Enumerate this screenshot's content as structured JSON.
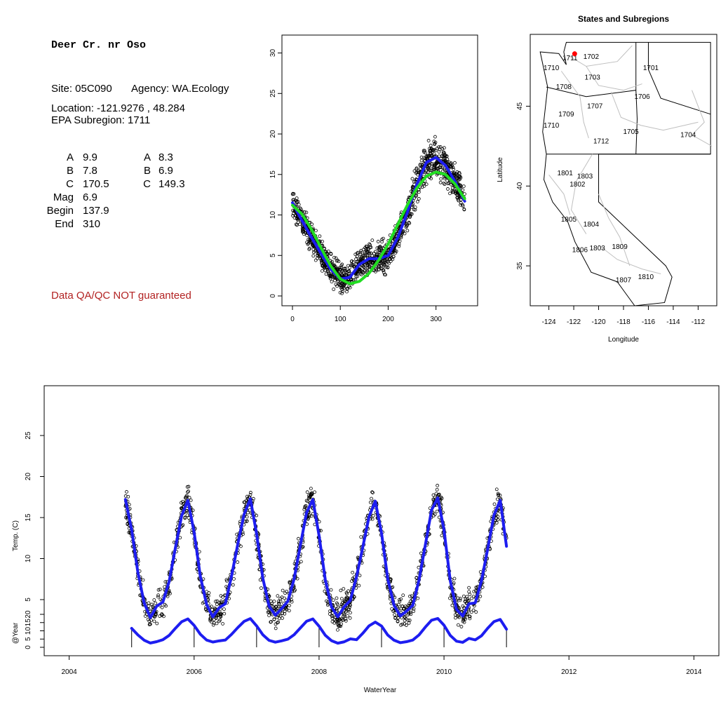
{
  "info": {
    "site_title": "Deer Cr. nr Oso",
    "site_line": "Site: 05C090",
    "agency_line": "Agency: WA.Ecology",
    "location_line": "Location: -121.9276 , 48.284",
    "subregion_line": "EPA Subregion: 1711",
    "params_left": [
      {
        "key": "A",
        "value": "9.9"
      },
      {
        "key": "B",
        "value": "7.8"
      },
      {
        "key": "C",
        "value": "170.5"
      },
      {
        "key": "Mag",
        "value": "6.9"
      },
      {
        "key": "Begin",
        "value": "137.9"
      },
      {
        "key": "End",
        "value": "310"
      }
    ],
    "params_right": [
      {
        "key": "A",
        "value": "8.3"
      },
      {
        "key": "B",
        "value": "6.9"
      },
      {
        "key": "C",
        "value": "149.3"
      }
    ],
    "qa_note": "Data QA/QC NOT guaranteed",
    "qa_color": "#b22222"
  },
  "chart_data": [
    {
      "type": "scatter",
      "xlim": [
        0,
        365
      ],
      "ylim": [
        0,
        31
      ],
      "xticks": [
        0,
        100,
        200,
        300
      ],
      "yticks": [
        0,
        5,
        10,
        15,
        20,
        25,
        30
      ],
      "point_color": "#000000",
      "fits": [
        {
          "color": "#1d1df0",
          "x": [
            0,
            20,
            40,
            60,
            80,
            100,
            120,
            140,
            160,
            180,
            200,
            220,
            240,
            260,
            280,
            300,
            320,
            340,
            360
          ],
          "y": [
            11.5,
            9.3,
            7.2,
            5.2,
            3.3,
            2.1,
            2.3,
            3.9,
            4.6,
            4.6,
            5.0,
            7.2,
            10.3,
            13.8,
            16.5,
            17.1,
            16.1,
            14.1,
            11.7
          ]
        },
        {
          "color": "#22dd22",
          "x": [
            0,
            20,
            40,
            60,
            80,
            100,
            120,
            140,
            160,
            180,
            200,
            220,
            240,
            260,
            280,
            300,
            320,
            340,
            360
          ],
          "y": [
            11.2,
            10.1,
            8.2,
            5.9,
            3.7,
            2.1,
            1.5,
            1.8,
            2.8,
            4.4,
            6.4,
            8.8,
            11.2,
            13.3,
            14.8,
            15.3,
            15.0,
            13.8,
            12.0
          ]
        }
      ]
    },
    {
      "type": "scatter",
      "title": "States and Subregions",
      "xlabel": "Longitude",
      "ylabel": "Latitude",
      "xlim": [
        -125.5,
        -110.5
      ],
      "ylim": [
        32.5,
        49.5
      ],
      "xticks": [
        -124,
        -122,
        -120,
        -118,
        -116,
        -114,
        -112
      ],
      "yticks": [
        35,
        40,
        45
      ],
      "site_marker": {
        "lon": -121.9276,
        "lat": 48.284,
        "color": "#ff0000"
      },
      "region_labels": [
        {
          "label": "1711",
          "lon": -122.3,
          "lat": 48.0
        },
        {
          "label": "1702",
          "lon": -120.6,
          "lat": 48.1
        },
        {
          "label": "1701",
          "lon": -115.8,
          "lat": 47.4
        },
        {
          "label": "1710",
          "lon": -123.8,
          "lat": 47.4
        },
        {
          "label": "1703",
          "lon": -120.5,
          "lat": 46.8
        },
        {
          "label": "1708",
          "lon": -122.8,
          "lat": 46.2
        },
        {
          "label": "1706",
          "lon": -116.5,
          "lat": 45.6
        },
        {
          "label": "1707",
          "lon": -120.3,
          "lat": 45.0
        },
        {
          "label": "1709",
          "lon": -122.6,
          "lat": 44.5
        },
        {
          "label": "1710",
          "lon": -123.8,
          "lat": 43.8
        },
        {
          "label": "1705",
          "lon": -117.4,
          "lat": 43.4
        },
        {
          "label": "1704",
          "lon": -112.8,
          "lat": 43.2
        },
        {
          "label": "1712",
          "lon": -119.8,
          "lat": 42.8
        },
        {
          "label": "1801",
          "lon": -122.7,
          "lat": 40.8
        },
        {
          "label": "1803",
          "lon": -121.1,
          "lat": 40.6
        },
        {
          "label": "1802",
          "lon": -121.7,
          "lat": 40.1
        },
        {
          "label": "1805",
          "lon": -122.4,
          "lat": 37.9
        },
        {
          "label": "1804",
          "lon": -120.6,
          "lat": 37.6
        },
        {
          "label": "1806",
          "lon": -121.5,
          "lat": 36.0
        },
        {
          "label": "1803",
          "lon": -120.1,
          "lat": 36.1
        },
        {
          "label": "1809",
          "lon": -118.3,
          "lat": 36.2
        },
        {
          "label": "1807",
          "lon": -118.0,
          "lat": 34.1
        },
        {
          "label": "1810",
          "lon": -116.2,
          "lat": 34.3
        }
      ]
    },
    {
      "type": "line",
      "xlabel": "WaterYear",
      "ylabel": "Temp. (C)",
      "ylabel2": "@Year",
      "xlim": [
        2003.6,
        2014.4
      ],
      "ylim": [
        0,
        30
      ],
      "xticks": [
        2004,
        2006,
        2008,
        2010,
        2012,
        2014
      ],
      "yticks": [
        5,
        10,
        15,
        20,
        25
      ],
      "yticks2": [
        0,
        5,
        10,
        15,
        20
      ],
      "point_color": "#000000",
      "fit_color": "#1d1df0",
      "fit": {
        "x": [
          2004.9,
          2005.0,
          2005.1,
          2005.2,
          2005.3,
          2005.4,
          2005.5,
          2005.6,
          2005.7,
          2005.8,
          2005.9,
          2006.0,
          2006.1,
          2006.2,
          2006.3,
          2006.4,
          2006.5,
          2006.6,
          2006.7,
          2006.8,
          2006.9,
          2007.0,
          2007.1,
          2007.2,
          2007.3,
          2007.4,
          2007.5,
          2007.6,
          2007.7,
          2007.8,
          2007.9,
          2008.0,
          2008.1,
          2008.2,
          2008.3,
          2008.4,
          2008.5,
          2008.6,
          2008.7,
          2008.8,
          2008.9,
          2009.0,
          2009.1,
          2009.2,
          2009.3,
          2009.4,
          2009.5,
          2009.6,
          2009.7,
          2009.8,
          2009.9,
          2010.0,
          2010.1,
          2010.2,
          2010.3,
          2010.4,
          2010.5,
          2010.6,
          2010.7,
          2010.8,
          2010.9,
          2011.0
        ],
        "y": [
          17.2,
          13.5,
          8.3,
          4.6,
          2.8,
          4.2,
          4.7,
          7.2,
          11.3,
          15.2,
          17.1,
          13.2,
          7.8,
          4.4,
          2.9,
          4.0,
          4.5,
          7.9,
          11.8,
          15.4,
          17.3,
          13.0,
          7.6,
          4.2,
          3.1,
          3.9,
          4.8,
          7.5,
          11.6,
          15.6,
          17.2,
          12.8,
          7.4,
          4.1,
          2.9,
          4.1,
          4.9,
          7.8,
          11.4,
          15.1,
          17.0,
          13.1,
          7.5,
          4.3,
          3.0,
          3.6,
          4.3,
          7.4,
          11.6,
          15.9,
          17.4,
          13.5,
          7.3,
          3.8,
          3.0,
          4.5,
          4.6,
          7.3,
          11.2,
          15.3,
          17.1,
          11.5
        ]
      },
      "year_curve": {
        "x": [
          2005.0,
          2005.1,
          2005.2,
          2005.3,
          2005.4,
          2005.5,
          2005.6,
          2005.7,
          2005.8,
          2005.9,
          2006.0,
          2006.1,
          2006.2,
          2006.3,
          2006.4,
          2006.5,
          2006.6,
          2006.7,
          2006.8,
          2006.9,
          2007.0,
          2007.1,
          2007.2,
          2007.3,
          2007.4,
          2007.5,
          2007.6,
          2007.7,
          2007.8,
          2007.9,
          2008.0,
          2008.1,
          2008.2,
          2008.3,
          2008.4,
          2008.5,
          2008.6,
          2008.7,
          2008.8,
          2008.9,
          2009.0,
          2009.1,
          2009.2,
          2009.3,
          2009.4,
          2009.5,
          2009.6,
          2009.7,
          2009.8,
          2009.9,
          2010.0,
          2010.1,
          2010.2,
          2010.3,
          2010.4,
          2010.5,
          2010.6,
          2010.7,
          2010.8,
          2010.9,
          2011.0
        ],
        "y": [
          11.5,
          7.5,
          4.3,
          2.6,
          3.4,
          4.6,
          7.2,
          11.5,
          15.5,
          17.2,
          13.3,
          7.9,
          4.4,
          3.2,
          3.9,
          4.4,
          7.9,
          12.0,
          15.7,
          17.4,
          13.0,
          7.6,
          4.2,
          3.1,
          3.9,
          4.9,
          7.6,
          11.7,
          15.8,
          17.2,
          12.8,
          7.3,
          4.0,
          2.5,
          3.3,
          5.1,
          4.6,
          8.5,
          13.0,
          15.3,
          12.9,
          7.4,
          4.3,
          2.8,
          3.4,
          4.4,
          7.5,
          12.2,
          16.4,
          17.5,
          13.4,
          7.2,
          3.7,
          3.0,
          5.4,
          4.5,
          7.0,
          11.6,
          15.6,
          16.9,
          11.0
        ]
      },
      "year_ticks": [
        2005,
        2006,
        2007,
        2008,
        2009,
        2010,
        2011
      ]
    }
  ]
}
